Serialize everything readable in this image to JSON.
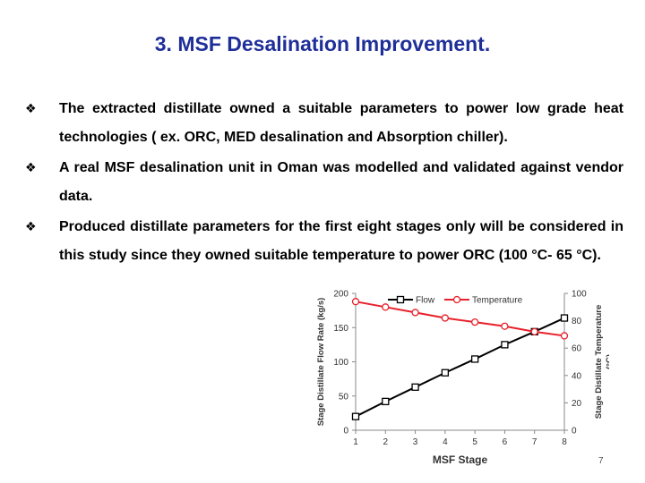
{
  "slide": {
    "title": "3. MSF Desalination Improvement.",
    "page_number": "7",
    "bullets": [
      {
        "glyph": "❖",
        "text": "The extracted distillate owned a suitable parameters to power low grade heat technologies ( ex. ORC, MED desalination and Absorption chiller)."
      },
      {
        "glyph": "❖",
        "text": "A real MSF desalination unit in Oman was modelled and validated against vendor data."
      },
      {
        "glyph": "❖",
        "text": "Produced distillate parameters for the first eight stages only will be considered in this study since they owned suitable temperature to power ORC (100 °C- 65 °C)."
      }
    ]
  },
  "chart_data": {
    "type": "line",
    "x": [
      1,
      2,
      3,
      4,
      5,
      6,
      7,
      8
    ],
    "xlabel": "MSF Stage",
    "xticks": [
      "1",
      "2",
      "3",
      "4",
      "5",
      "6",
      "7",
      "8"
    ],
    "ylabel_left": "Stage Distillate Flow Rate (kg/s)",
    "ylim_left": [
      0,
      200
    ],
    "yticks_left": [
      "0",
      "50",
      "100",
      "150",
      "200"
    ],
    "ylabel_right": "Stage Distillate Temperature (°C)",
    "ylim_right": [
      0,
      100
    ],
    "yticks_right": [
      "0",
      "20",
      "40",
      "60",
      "80",
      "100"
    ],
    "legend_position": "top",
    "grid": false,
    "series": [
      {
        "name": "Flow",
        "axis": "left",
        "color": "#000000",
        "marker": "square-open",
        "values": [
          20,
          42,
          63,
          84,
          104,
          125,
          144,
          164
        ]
      },
      {
        "name": "Temperature",
        "axis": "right",
        "color": "#e8202a",
        "marker": "circle-open",
        "values": [
          94,
          90,
          86,
          82,
          79,
          76,
          72,
          69
        ]
      }
    ]
  }
}
